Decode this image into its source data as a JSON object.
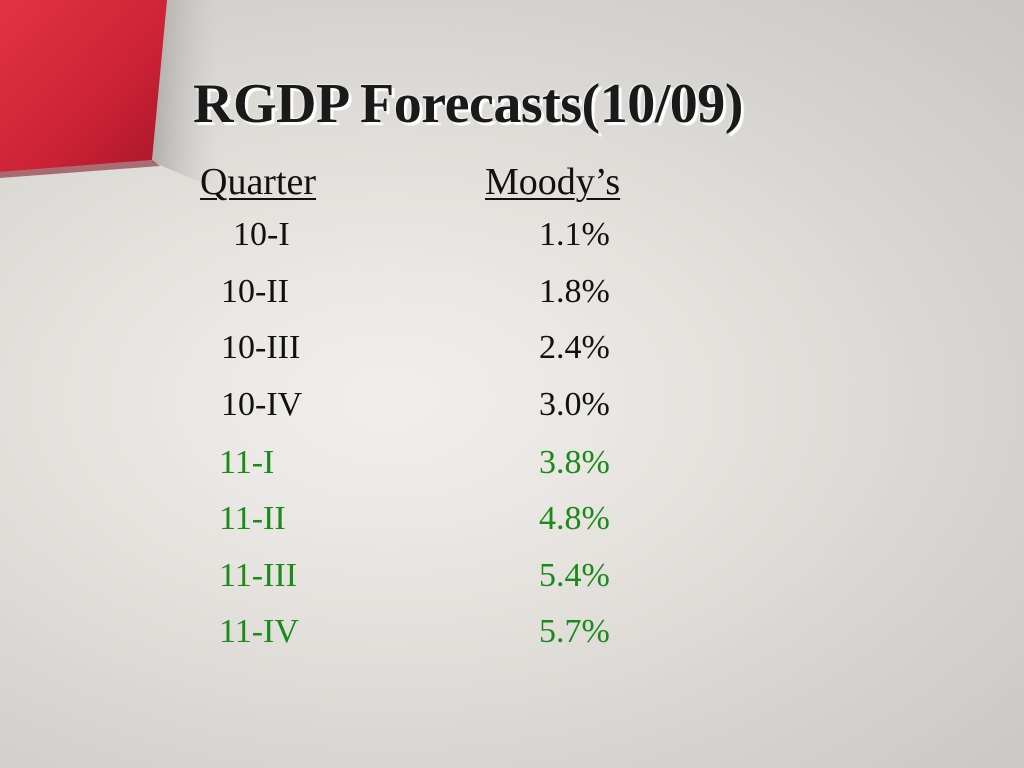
{
  "title": "RGDP Forecasts(10/09)",
  "headers": {
    "quarter": "Quarter",
    "moodys": "Moody’s"
  },
  "rows": [
    {
      "quarter": "10-I",
      "value": "1.1%"
    },
    {
      "quarter": "10-II",
      "value": "1.8%"
    },
    {
      "quarter": "10-III",
      "value": "2.4%"
    },
    {
      "quarter": "10-IV",
      "value": "3.0%"
    },
    {
      "quarter": "11-I",
      "value": "3.8%"
    },
    {
      "quarter": "11-II",
      "value": "4.8%"
    },
    {
      "quarter": "11-III",
      "value": "5.4%"
    },
    {
      "quarter": "11-IV",
      "value": "5.7%"
    }
  ],
  "colors": {
    "current_year_text": "#111111",
    "next_year_text": "#1a8a1a",
    "accent_red": "#d8283c"
  }
}
